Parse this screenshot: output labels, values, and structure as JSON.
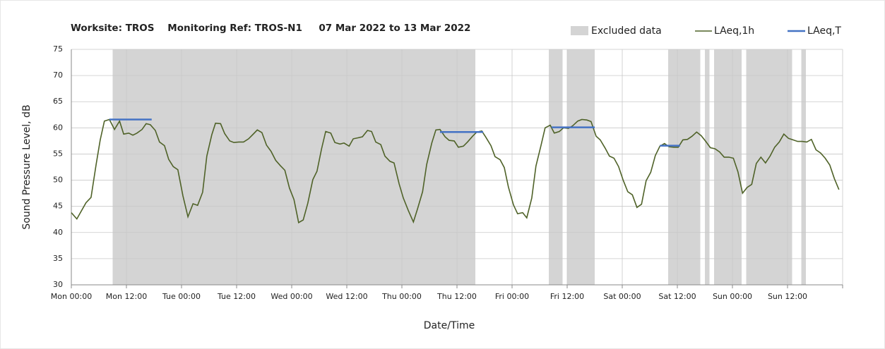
{
  "chart_data": {
    "type": "line",
    "title": "Worksite: TROS    Monitoring Ref: TROS-N1     07 Mar 2022 to 13 Mar 2022",
    "y_label": "Sound Pressure Level, dB",
    "x_label": "Date/Time",
    "xlim": [
      0,
      168
    ],
    "xticks": [
      {
        "value": 0,
        "label": "Mon 00:00"
      },
      {
        "value": 12,
        "label": "Mon 12:00"
      },
      {
        "value": 24,
        "label": "Tue 00:00"
      },
      {
        "value": 36,
        "label": "Tue 12:00"
      },
      {
        "value": 48,
        "label": "Wed 00:00"
      },
      {
        "value": 60,
        "label": "Wed 12:00"
      },
      {
        "value": 72,
        "label": "Thu 00:00"
      },
      {
        "value": 84,
        "label": "Thu 12:00"
      },
      {
        "value": 96,
        "label": "Fri 00:00"
      },
      {
        "value": 108,
        "label": "Fri 12:00"
      },
      {
        "value": 120,
        "label": "Sat 00:00"
      },
      {
        "value": 132,
        "label": "Sat 12:00"
      },
      {
        "value": 144,
        "label": "Sun 00:00"
      },
      {
        "value": 156,
        "label": "Sun 12:00"
      },
      {
        "value": 168,
        "label": ""
      }
    ],
    "ylim": [
      30,
      75
    ],
    "yticks": [
      30,
      35,
      40,
      45,
      50,
      55,
      60,
      65,
      70,
      75
    ],
    "grid": true,
    "excluded": {
      "name": "Excluded data",
      "color": "#d4d4d4",
      "ranges": [
        [
          9,
          88
        ],
        [
          104,
          107
        ],
        [
          108,
          114
        ],
        [
          130,
          137
        ],
        [
          138,
          139
        ],
        [
          140,
          146
        ],
        [
          147,
          157
        ],
        [
          159,
          160
        ]
      ]
    },
    "series": [
      {
        "name": "LAeq,1h",
        "color": "#4f6228",
        "x": [
          0,
          1.2,
          3.2,
          4.3,
          5.4,
          6.3,
          7.2,
          8.3,
          9.4,
          10.5,
          11.4,
          12.5,
          13.4,
          14.3,
          15.4,
          16.3,
          17.2,
          18.3,
          19.2,
          20.3,
          21.2,
          22.2,
          23.2,
          24.3,
          25.4,
          26.5,
          27.5,
          28.6,
          29.5,
          30.6,
          31.4,
          32.5,
          33.4,
          34.5,
          35.4,
          36.5,
          37.5,
          38.6,
          39.5,
          40.5,
          41.5,
          42.5,
          43.5,
          44.5,
          45.5,
          46.5,
          47.5,
          48.5,
          49.5,
          50.5,
          51.5,
          52.6,
          53.5,
          54.5,
          55.4,
          56.5,
          57.4,
          58.5,
          59.4,
          60.5,
          61.4,
          62.5,
          63.4,
          64.5,
          65.4,
          66.3,
          67.4,
          68.3,
          69.4,
          70.3,
          71.4,
          72.3,
          73.4,
          74.5,
          75.4,
          76.5,
          77.4,
          78.5,
          79.4,
          80.3,
          81.4,
          82.3,
          83.4,
          84.3,
          85.4,
          86.3,
          87.4,
          88.3,
          89.4,
          90.3,
          91.4,
          92.3,
          93.4,
          94.3,
          95.2,
          96.3,
          97.2,
          98.3,
          99.2,
          100.3,
          101.2,
          102.3,
          103.2,
          104.3,
          105.2,
          106.3,
          107.2,
          108.3,
          109.2,
          110.3,
          111.2,
          112.3,
          113.2,
          114.3,
          115.2,
          116.3,
          117.2,
          118.2,
          119.2,
          120.2,
          121.2,
          122.2,
          123.2,
          124.2,
          125.2,
          126.2,
          127.2,
          128.2,
          129.2,
          130.2,
          131.2,
          132.2,
          133.2,
          134.2,
          135.2,
          136.2,
          137.2,
          138.2,
          139.2,
          140.2,
          141.2,
          142.2,
          143.2,
          144.2,
          145.2,
          146.2,
          147.2,
          148.2,
          149.2,
          150.2,
          151.2,
          152.2,
          153.2,
          154.2,
          155.2,
          156.2,
          157.2,
          158.2,
          159.2,
          160.2,
          161.2,
          162.2,
          163.2,
          164.2,
          165.2,
          166.2,
          167.2
        ],
        "values": [
          43.8,
          42.6,
          45.7,
          46.7,
          53,
          57.7,
          61.3,
          61.6,
          59.7,
          61.3,
          58.8,
          59,
          58.6,
          59,
          59.7,
          60.8,
          60.6,
          59.5,
          57.3,
          56.6,
          54,
          52.6,
          52,
          47,
          43,
          45.5,
          45.2,
          47.7,
          54.6,
          58.7,
          60.9,
          60.8,
          58.9,
          57.5,
          57.2,
          57.3,
          57.3,
          57.9,
          58.7,
          59.6,
          59.1,
          56.7,
          55.5,
          53.8,
          52.8,
          51.9,
          48.5,
          46.3,
          41.9,
          42.4,
          45.6,
          50.1,
          51.7,
          56,
          59.3,
          59,
          57.2,
          56.9,
          57.1,
          56.5,
          57.9,
          58.1,
          58.3,
          59.5,
          59.3,
          57.3,
          56.8,
          54.6,
          53.6,
          53.3,
          49.3,
          46.6,
          44.2,
          42,
          44.5,
          47.8,
          53,
          57.1,
          59.6,
          59.7,
          58.3,
          57.6,
          57.5,
          56.3,
          56.5,
          57.3,
          58.4,
          59.2,
          59.4,
          58.2,
          56.6,
          54.5,
          53.9,
          52.4,
          48.7,
          45.3,
          43.6,
          43.8,
          42.8,
          46.6,
          52.7,
          56.6,
          60,
          60.5,
          59,
          59.3,
          60,
          59.9,
          60.4,
          61.3,
          61.6,
          61.5,
          61.2,
          58.4,
          57.7,
          56.1,
          54.6,
          54.2,
          52.6,
          50,
          47.8,
          47.2,
          44.8,
          45.4,
          49.9,
          51.5,
          54.7,
          56.5,
          57,
          56.4,
          56.3,
          56.3,
          57.7,
          57.8,
          58.4,
          59.2,
          58.5,
          57.4,
          56.2,
          56,
          55.4,
          54.4,
          54.4,
          54.2,
          51.6,
          47.5,
          48.6,
          49.2,
          53.2,
          54.4,
          53.3,
          54.6,
          56.3,
          57.3,
          58.8,
          58,
          57.7,
          57.4,
          57.4,
          57.3,
          57.8,
          55.8,
          55.2,
          54.2,
          52.9,
          50.3,
          48.2
        ]
      },
      {
        "name": "LAeq,T",
        "color": "#4472c4",
        "segments": [
          {
            "x": [
              8.3,
              17.5
            ],
            "value": 61.6
          },
          {
            "x": [
              80.3,
              89.7
            ],
            "value": 59.2
          },
          {
            "x": [
              104.6,
              114
            ],
            "value": 60.1
          },
          {
            "x": [
              128.2,
              132.6
            ],
            "value": 56.6
          }
        ]
      }
    ]
  }
}
